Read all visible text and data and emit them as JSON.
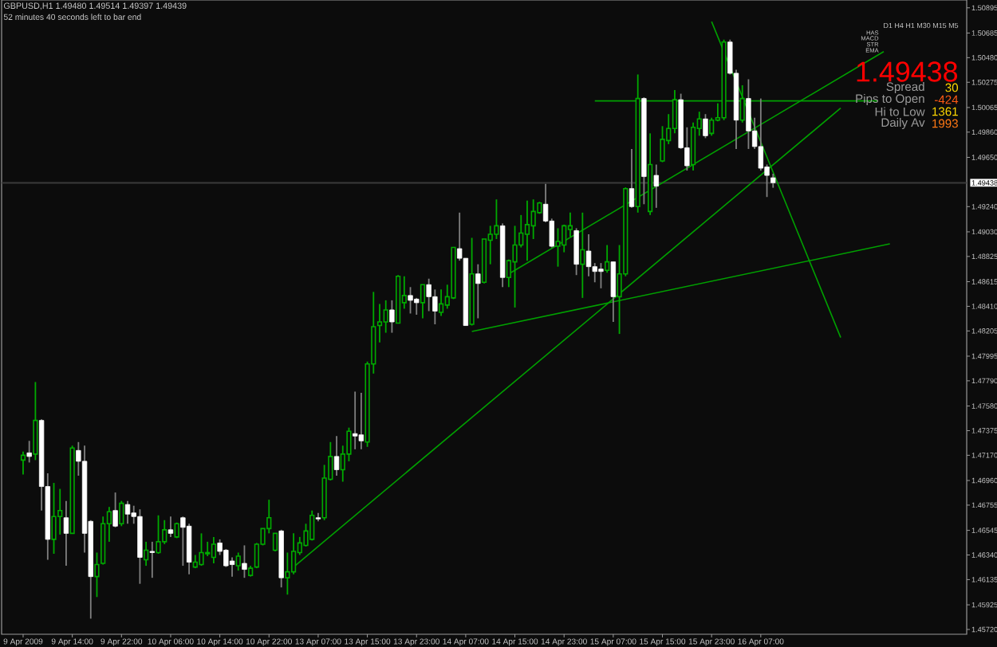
{
  "chart_data": {
    "type": "candlestick",
    "title": "GBPUSD,H1 1.49480 1.49514 1.49397 1.49439",
    "subtitle": "52 minutes 40 seconds left to bar end",
    "annotations": [
      "D1 H4 H1 M30 M15 M5",
      "HAS",
      "MACD",
      "STR",
      "EMA",
      "1.49438",
      "Spread",
      "30",
      "Pips to Open",
      "-424",
      "Hi to Low",
      "1361",
      "Daily Av",
      "1993"
    ],
    "categories": [
      "9 Apr 2009",
      null,
      null,
      null,
      null,
      null,
      null,
      null,
      "9 Apr 14:00",
      null,
      null,
      null,
      null,
      null,
      null,
      null,
      "9 Apr 22:00",
      null,
      null,
      null,
      null,
      null,
      null,
      null,
      "10 Apr 06:00",
      null,
      null,
      null,
      null,
      null,
      null,
      null,
      "10 Apr 14:00",
      null,
      null,
      null,
      null,
      null,
      null,
      null,
      "10 Apr 22:00",
      null,
      null,
      null,
      null,
      null,
      null,
      null,
      "13 Apr 07:00",
      null,
      null,
      null,
      null,
      null,
      null,
      null,
      "13 Apr 15:00",
      null,
      null,
      null,
      null,
      null,
      null,
      null,
      "13 Apr 23:00",
      null,
      null,
      null,
      null,
      null,
      null,
      null,
      "14 Apr 07:00",
      null,
      null,
      null,
      null,
      null,
      null,
      null,
      "14 Apr 15:00",
      null,
      null,
      null,
      null,
      null,
      null,
      null,
      "14 Apr 23:00",
      null,
      null,
      null,
      null,
      null,
      null,
      null,
      "15 Apr 07:00",
      null,
      null,
      null,
      null,
      null,
      null,
      null,
      "15 Apr 15:00",
      null,
      null,
      null,
      null,
      null,
      null,
      null,
      "15 Apr 23:00",
      null,
      null,
      null,
      null,
      null,
      null,
      null,
      "16 Apr 07:00",
      null,
      null,
      null,
      null,
      null,
      null,
      null,
      null,
      null,
      null,
      null,
      null,
      null,
      null,
      null,
      null,
      null,
      null,
      null,
      null,
      null,
      null,
      null,
      null,
      null,
      null,
      null,
      null,
      null,
      null,
      null,
      null,
      null
    ],
    "ohlc": [
      [
        1.4713,
        1.472,
        1.4701,
        1.4717
      ],
      [
        1.4719,
        1.4729,
        1.4711,
        1.4716
      ],
      [
        1.4718,
        1.4778,
        1.4713,
        1.4746
      ],
      [
        1.4746,
        1.4747,
        1.4671,
        1.4691
      ],
      [
        1.4691,
        1.4702,
        1.463,
        1.4647
      ],
      [
        1.4647,
        1.4694,
        1.4635,
        1.4666
      ],
      [
        1.4666,
        1.4689,
        1.4651,
        1.4671
      ],
      [
        1.4665,
        1.4679,
        1.4625,
        1.4652
      ],
      [
        1.4652,
        1.4725,
        1.4652,
        1.4723
      ],
      [
        1.4721,
        1.4728,
        1.47,
        1.4712
      ],
      [
        1.4712,
        1.4725,
        1.4636,
        1.4652
      ],
      [
        1.4662,
        1.4663,
        1.4581,
        1.4616
      ],
      [
        1.4616,
        1.4636,
        1.4599,
        1.4626
      ],
      [
        1.4627,
        1.4666,
        1.4626,
        1.466
      ],
      [
        1.466,
        1.4674,
        1.4645,
        1.467
      ],
      [
        1.4671,
        1.4686,
        1.4657,
        1.4658
      ],
      [
        1.466,
        1.4679,
        1.4658,
        1.4677
      ],
      [
        1.4676,
        1.4679,
        1.466,
        1.4668
      ],
      [
        1.4669,
        1.4675,
        1.466,
        1.4666
      ],
      [
        1.4666,
        1.4672,
        1.461,
        1.4632
      ],
      [
        1.463,
        1.4645,
        1.4625,
        1.4638
      ],
      [
        1.4637,
        1.4645,
        1.4615,
        1.4636
      ],
      [
        1.4636,
        1.4667,
        1.4635,
        1.4645
      ],
      [
        1.4645,
        1.4663,
        1.4643,
        1.4655
      ],
      [
        1.4655,
        1.4666,
        1.4649,
        1.4652
      ],
      [
        1.4649,
        1.4661,
        1.4648,
        1.466
      ],
      [
        1.4665,
        1.4666,
        1.4625,
        1.4657
      ],
      [
        1.4658,
        1.466,
        1.4618,
        1.4628
      ],
      [
        1.4624,
        1.4634,
        1.4623,
        1.4628
      ],
      [
        1.4626,
        1.4652,
        1.4625,
        1.4636
      ],
      [
        1.4635,
        1.4645,
        1.4633,
        1.4636
      ],
      [
        1.4632,
        1.4649,
        1.4627,
        1.4643
      ],
      [
        1.4644,
        1.4647,
        1.4634,
        1.4637
      ],
      [
        1.4638,
        1.4639,
        1.4624,
        1.4625
      ],
      [
        1.4629,
        1.4632,
        1.4616,
        1.4626
      ],
      [
        1.4625,
        1.4636,
        1.4621,
        1.4633
      ],
      [
        1.4627,
        1.4642,
        1.4615,
        1.4622
      ],
      [
        1.4617,
        1.4625,
        1.4616,
        1.4623
      ],
      [
        1.4624,
        1.4644,
        1.4623,
        1.4643
      ],
      [
        1.4643,
        1.4656,
        1.4642,
        1.4656
      ],
      [
        1.4656,
        1.468,
        1.4652,
        1.4665
      ],
      [
        1.4638,
        1.4652,
        1.4637,
        1.4652
      ],
      [
        1.4654,
        1.4655,
        1.4607,
        1.4615
      ],
      [
        1.4615,
        1.4636,
        1.4601,
        1.462
      ],
      [
        1.462,
        1.4652,
        1.4618,
        1.4637
      ],
      [
        1.4636,
        1.4649,
        1.4634,
        1.4644
      ],
      [
        1.4642,
        1.466,
        1.4641,
        1.4654
      ],
      [
        1.4647,
        1.4671,
        1.4646,
        1.4667
      ],
      [
        1.4665,
        1.4669,
        1.4662,
        1.4664
      ],
      [
        1.4665,
        1.4709,
        1.4663,
        1.4698
      ],
      [
        1.4697,
        1.4728,
        1.4696,
        1.4716
      ],
      [
        1.4716,
        1.4733,
        1.47,
        1.4705
      ],
      [
        1.4705,
        1.4725,
        1.4695,
        1.4718
      ],
      [
        1.4718,
        1.474,
        1.4712,
        1.4737
      ],
      [
        1.4735,
        1.477,
        1.4722,
        1.4733
      ],
      [
        1.4734,
        1.4769,
        1.4722,
        1.4729
      ],
      [
        1.4728,
        1.4795,
        1.4724,
        1.4793
      ],
      [
        1.4793,
        1.4853,
        1.4785,
        1.4824
      ],
      [
        1.4825,
        1.4843,
        1.4811,
        1.4828
      ],
      [
        1.4828,
        1.4846,
        1.4819,
        1.4838
      ],
      [
        1.4838,
        1.4846,
        1.4819,
        1.4828
      ],
      [
        1.4827,
        1.4867,
        1.4827,
        1.4866
      ],
      [
        1.4844,
        1.4866,
        1.4839,
        1.485
      ],
      [
        1.485,
        1.4857,
        1.4835,
        1.4846
      ],
      [
        1.4847,
        1.4848,
        1.4834,
        1.4844
      ],
      [
        1.4844,
        1.4859,
        1.4831,
        1.4859
      ],
      [
        1.4859,
        1.4864,
        1.4837,
        1.4849
      ],
      [
        1.4849,
        1.4855,
        1.4826,
        1.4837
      ],
      [
        1.4836,
        1.4855,
        1.4833,
        1.4843
      ],
      [
        1.4842,
        1.4859,
        1.4839,
        1.4849
      ],
      [
        1.4848,
        1.489,
        1.4847,
        1.489
      ],
      [
        1.4889,
        1.4919,
        1.4879,
        1.4881
      ],
      [
        1.4881,
        1.4881,
        1.4825,
        1.4825
      ],
      [
        1.4826,
        1.4898,
        1.4825,
        1.4868
      ],
      [
        1.4868,
        1.4876,
        1.4831,
        1.486
      ],
      [
        1.4861,
        1.4897,
        1.486,
        1.4897
      ],
      [
        1.4896,
        1.4908,
        1.4876,
        1.4901
      ],
      [
        1.4901,
        1.493,
        1.4897,
        1.4908
      ],
      [
        1.4908,
        1.491,
        1.4857,
        1.4865
      ],
      [
        1.4865,
        1.488,
        1.4857,
        1.4879
      ],
      [
        1.4878,
        1.4908,
        1.484,
        1.4892
      ],
      [
        1.4892,
        1.4917,
        1.489,
        1.4902
      ],
      [
        1.4901,
        1.4929,
        1.4879,
        1.4909
      ],
      [
        1.4908,
        1.493,
        1.4897,
        1.492
      ],
      [
        1.4919,
        1.4928,
        1.4918,
        1.4927
      ],
      [
        1.4926,
        1.4943,
        1.4911,
        1.4912
      ],
      [
        1.4912,
        1.4914,
        1.489,
        1.4891
      ],
      [
        1.4891,
        1.4906,
        1.4874,
        1.4895
      ],
      [
        1.4892,
        1.4909,
        1.4886,
        1.4908
      ],
      [
        1.4905,
        1.4919,
        1.4899,
        1.4908
      ],
      [
        1.4904,
        1.4906,
        1.4867,
        1.4876
      ],
      [
        1.4876,
        1.4919,
        1.4848,
        1.4888
      ],
      [
        1.4887,
        1.4901,
        1.4866,
        1.4874
      ],
      [
        1.4874,
        1.4877,
        1.4861,
        1.487
      ],
      [
        1.4872,
        1.4877,
        1.4856,
        1.487
      ],
      [
        1.4871,
        1.4892,
        1.4869,
        1.4878
      ],
      [
        1.4878,
        1.4878,
        1.4828,
        1.4849
      ],
      [
        1.4849,
        1.4892,
        1.4818,
        1.4868
      ],
      [
        1.4868,
        1.494,
        1.4866,
        1.4939
      ],
      [
        1.4939,
        1.4972,
        1.4923,
        1.4924
      ],
      [
        1.4924,
        1.5034,
        1.4919,
        1.5014
      ],
      [
        1.5014,
        1.5015,
        1.4926,
        1.4949
      ],
      [
        1.492,
        1.4985,
        1.4917,
        1.4959
      ],
      [
        1.495,
        1.4959,
        1.4923,
        1.4941
      ],
      [
        1.4962,
        1.4991,
        1.4961,
        1.498
      ],
      [
        1.4979,
        1.5001,
        1.4976,
        1.4989
      ],
      [
        1.4989,
        1.5021,
        1.4985,
        1.5013
      ],
      [
        1.5013,
        1.5018,
        1.4972,
        1.4973
      ],
      [
        1.4973,
        1.499,
        1.4954,
        1.4958
      ],
      [
        1.4959,
        1.4994,
        1.4954,
        1.499
      ],
      [
        1.4989,
        1.5003,
        1.4983,
        1.4997
      ],
      [
        1.4997,
        1.5001,
        1.4981,
        1.4983
      ],
      [
        1.4985,
        1.4998,
        1.4983,
        1.4996
      ],
      [
        1.4996,
        1.501,
        1.4995,
        1.4998
      ],
      [
        1.4998,
        1.5063,
        1.4996,
        1.5061
      ],
      [
        1.5061,
        1.5063,
        1.5034,
        1.5035
      ],
      [
        1.5035,
        1.5038,
        1.4972,
        1.4996
      ],
      [
        1.4996,
        1.5025,
        1.4994,
        1.5014
      ],
      [
        1.5014,
        1.503,
        1.4972,
        1.4987
      ],
      [
        1.4987,
        1.4998,
        1.4972,
        1.4974
      ],
      [
        1.4974,
        1.5014,
        1.4954,
        1.4956
      ],
      [
        1.4957,
        1.4959,
        1.4932,
        1.495
      ],
      [
        1.4948,
        1.49514,
        1.49397,
        1.49439
      ],
      null,
      null,
      null,
      null,
      null,
      null,
      null,
      null,
      null,
      null,
      null,
      null,
      null,
      null,
      null,
      null,
      null,
      null,
      null,
      null,
      null,
      null,
      null,
      null,
      null,
      null,
      null,
      null,
      null,
      null,
      null
    ],
    "colors": [
      "#00aa00",
      "#ffffff",
      "#00aa00",
      "#ffffff",
      "#ffffff",
      "#00aa00",
      "#00aa00",
      "#ffffff",
      "#00aa00",
      "#ffffff",
      "#ffffff",
      "#ffffff",
      "#00aa00",
      "#00aa00",
      "#00aa00",
      "#ffffff",
      "#00aa00",
      "#ffffff",
      "#ffffff",
      "#ffffff",
      "#00aa00",
      "#ffffff",
      "#00aa00",
      "#00aa00",
      "#ffffff",
      "#00aa00",
      "#ffffff",
      "#ffffff",
      "#00aa00",
      "#00aa00",
      "#00aa00",
      "#00aa00",
      "#ffffff",
      "#ffffff",
      "#ffffff",
      "#00aa00",
      "#ffffff",
      "#00aa00",
      "#00aa00",
      "#00aa00",
      "#00aa00",
      "#00aa00",
      "#ffffff",
      "#00aa00",
      "#00aa00",
      "#00aa00",
      "#00aa00",
      "#00aa00",
      "#ffffff",
      "#00aa00",
      "#00aa00",
      "#ffffff",
      "#00aa00",
      "#00aa00",
      "#ffffff",
      "#ffffff",
      "#00aa00",
      "#00aa00",
      "#00aa00",
      "#00aa00",
      "#ffffff",
      "#00aa00",
      "#00aa00",
      "#ffffff",
      "#ffffff",
      "#00aa00",
      "#ffffff",
      "#ffffff",
      "#00aa00",
      "#00aa00",
      "#00aa00",
      "#ffffff",
      "#ffffff",
      "#00aa00",
      "#ffffff",
      "#00aa00",
      "#00aa00",
      "#00aa00",
      "#ffffff",
      "#00aa00",
      "#00aa00",
      "#00aa00",
      "#00aa00",
      "#00aa00",
      "#00aa00",
      "#ffffff",
      "#ffffff",
      "#00aa00",
      "#00aa00",
      "#00aa00",
      "#ffffff",
      "#00aa00",
      "#ffffff",
      "#ffffff",
      "#ffffff",
      "#00aa00",
      "#ffffff",
      "#00aa00",
      "#00aa00",
      "#ffffff",
      "#00aa00",
      "#ffffff",
      "#00aa00",
      "#ffffff",
      "#00aa00",
      "#00aa00",
      "#00aa00",
      "#ffffff",
      "#ffffff",
      "#00aa00",
      "#00aa00",
      "#ffffff",
      "#00aa00",
      "#00aa00",
      "#00aa00",
      "#ffffff",
      "#ffffff",
      "#00aa00",
      "#ffffff",
      "#ffffff",
      "#ffffff",
      "#ffffff",
      "#ffffff",
      null,
      null,
      null,
      null,
      null,
      null,
      null,
      null,
      null,
      null,
      null,
      null,
      null,
      null,
      null,
      null,
      null,
      null,
      null,
      null,
      null,
      null,
      null,
      null,
      null,
      null,
      null,
      null,
      null,
      null,
      null
    ],
    "series": [
      {
        "type": "line",
        "color": "#00a000",
        "values": [
          null,
          null,
          null,
          null,
          null,
          null,
          null,
          null,
          null,
          null,
          null,
          null,
          null,
          null,
          null,
          null,
          null,
          null,
          null,
          null,
          null,
          null,
          null,
          null,
          null,
          null,
          null,
          null,
          null,
          null,
          null,
          null,
          null,
          null,
          null,
          null,
          null,
          null,
          null,
          null,
          null,
          null,
          null,
          null,
          1.4624,
          null,
          null,
          null,
          null,
          null,
          null,
          null,
          null,
          null,
          null,
          null,
          null,
          null,
          null,
          null,
          null,
          null,
          null,
          null,
          null,
          null,
          null,
          null,
          null,
          null,
          null,
          null,
          null,
          null,
          null,
          null,
          null,
          null,
          null,
          null,
          null,
          null,
          null,
          null,
          null,
          null,
          null,
          null,
          null,
          null,
          null,
          null,
          null,
          null,
          null,
          null,
          null,
          null,
          null,
          null,
          null,
          null,
          null,
          null,
          null,
          null,
          null,
          null,
          null,
          null,
          null,
          null,
          null,
          null,
          null,
          null,
          null,
          null,
          null,
          null,
          null,
          null,
          null,
          null,
          null,
          null,
          null,
          null,
          null,
          null,
          null,
          null,
          null,
          1.5006,
          null,
          null,
          null,
          null,
          null,
          null,
          null,
          null,
          null,
          null,
          null,
          null,
          null,
          null,
          null,
          null,
          null,
          null,
          null,
          null
        ]
      },
      {
        "type": "line",
        "color": "#00a000",
        "values": [
          null,
          null,
          null,
          null,
          null,
          null,
          null,
          null,
          null,
          null,
          null,
          null,
          null,
          null,
          null,
          null,
          null,
          null,
          null,
          null,
          null,
          null,
          null,
          null,
          null,
          null,
          null,
          null,
          null,
          null,
          null,
          null,
          null,
          null,
          null,
          null,
          null,
          null,
          null,
          null,
          null,
          null,
          null,
          null,
          null,
          null,
          null,
          null,
          null,
          null,
          null,
          null,
          null,
          null,
          null,
          null,
          null,
          null,
          null,
          null,
          null,
          null,
          null,
          null,
          null,
          null,
          null,
          null,
          null,
          null,
          null,
          null,
          null,
          null,
          null,
          null,
          null,
          null,
          null,
          1.4868,
          null,
          null,
          null,
          null,
          null,
          null,
          null,
          null,
          null,
          null,
          null,
          null,
          null,
          null,
          null,
          null,
          null,
          null,
          null,
          null,
          null,
          null,
          null,
          null,
          null,
          null,
          null,
          null,
          null,
          null,
          null,
          null,
          null,
          null,
          null,
          null,
          null,
          null,
          null,
          null,
          null,
          null,
          null,
          null,
          null,
          null,
          null,
          null,
          null,
          null,
          null,
          null,
          null,
          null,
          null,
          null,
          null,
          null,
          null,
          null,
          1.5053,
          null,
          null,
          null,
          null,
          null,
          null,
          null,
          null,
          null,
          null,
          null,
          null,
          null
        ]
      },
      {
        "type": "line",
        "color": "#00a000",
        "values": [
          null,
          null,
          null,
          null,
          null,
          null,
          null,
          null,
          null,
          null,
          null,
          null,
          null,
          null,
          null,
          null,
          null,
          null,
          null,
          null,
          null,
          null,
          null,
          null,
          null,
          null,
          null,
          null,
          null,
          null,
          null,
          null,
          null,
          null,
          null,
          null,
          null,
          null,
          null,
          null,
          null,
          null,
          null,
          null,
          null,
          null,
          null,
          null,
          null,
          null,
          null,
          null,
          null,
          null,
          null,
          null,
          null,
          null,
          null,
          null,
          null,
          null,
          null,
          null,
          null,
          null,
          null,
          null,
          null,
          null,
          null,
          null,
          null,
          1.482,
          null,
          null,
          null,
          null,
          null,
          null,
          null,
          null,
          null,
          null,
          null,
          null,
          null,
          null,
          null,
          null,
          null,
          null,
          null,
          null,
          null,
          null,
          null,
          null,
          null,
          null,
          null,
          null,
          null,
          null,
          null,
          null,
          null,
          null,
          null,
          null,
          null,
          null,
          null,
          null,
          null,
          null,
          null,
          null,
          null,
          null,
          null,
          null,
          null,
          null,
          null,
          null,
          null,
          null,
          null,
          null,
          null,
          null,
          null,
          null,
          null,
          null,
          null,
          null,
          null,
          null,
          null,
          1.4893,
          null,
          null,
          null,
          null,
          null,
          null,
          null,
          null,
          null,
          null,
          null,
          null
        ]
      },
      {
        "type": "line",
        "color": "#00a000",
        "values": [
          null,
          null,
          null,
          null,
          null,
          null,
          null,
          null,
          null,
          null,
          null,
          null,
          null,
          null,
          null,
          null,
          null,
          null,
          null,
          null,
          null,
          null,
          null,
          null,
          null,
          null,
          null,
          null,
          null,
          null,
          null,
          null,
          null,
          null,
          null,
          null,
          null,
          null,
          null,
          null,
          null,
          null,
          null,
          null,
          null,
          null,
          null,
          null,
          null,
          null,
          null,
          null,
          null,
          null,
          null,
          null,
          null,
          null,
          null,
          null,
          null,
          null,
          null,
          null,
          null,
          null,
          null,
          null,
          null,
          null,
          null,
          null,
          null,
          null,
          null,
          null,
          null,
          null,
          null,
          null,
          null,
          null,
          null,
          null,
          null,
          null,
          null,
          null,
          null,
          null,
          null,
          null,
          null,
          null,
          null,
          null,
          null,
          null,
          null,
          null,
          null,
          null,
          null,
          null,
          null,
          null,
          null,
          null,
          null,
          null,
          null,
          null,
          1.5078,
          null,
          null,
          null,
          null,
          null,
          null,
          null,
          null,
          null,
          null,
          null,
          null,
          null,
          null,
          null,
          null,
          null,
          null,
          null,
          null,
          1.4815,
          null,
          null,
          null,
          null,
          null,
          null,
          null,
          null,
          null,
          null,
          null,
          null,
          null,
          null,
          null,
          null,
          null,
          null,
          null,
          null
        ]
      },
      {
        "type": "line",
        "color": "#00a000",
        "values": [
          null,
          null,
          null,
          null,
          null,
          null,
          null,
          null,
          null,
          null,
          null,
          null,
          null,
          null,
          null,
          null,
          null,
          null,
          null,
          null,
          null,
          null,
          null,
          null,
          null,
          null,
          null,
          null,
          null,
          null,
          null,
          null,
          null,
          null,
          null,
          null,
          null,
          null,
          null,
          null,
          null,
          null,
          null,
          null,
          null,
          null,
          null,
          null,
          null,
          null,
          null,
          null,
          null,
          null,
          null,
          null,
          null,
          null,
          null,
          null,
          null,
          null,
          null,
          null,
          null,
          null,
          null,
          null,
          null,
          null,
          null,
          null,
          null,
          null,
          null,
          null,
          null,
          null,
          null,
          null,
          null,
          null,
          null,
          null,
          null,
          null,
          null,
          null,
          null,
          null,
          null,
          null,
          null,
          1.5012,
          null,
          null,
          null,
          null,
          null,
          null,
          null,
          null,
          null,
          null,
          null,
          null,
          null,
          null,
          null,
          null,
          null,
          null,
          null,
          null,
          null,
          null,
          null,
          null,
          null,
          null,
          null,
          null,
          null,
          null,
          null,
          null,
          null,
          null,
          null,
          null,
          null,
          null,
          null,
          null,
          null,
          null,
          null,
          null,
          null,
          1.5012,
          null,
          null,
          null,
          null,
          null,
          null,
          null,
          null,
          null,
          null,
          null,
          null,
          null,
          null
        ]
      }
    ],
    "ref_lines": [
      {
        "axis": "y",
        "value": 1.49438,
        "label": "1.49438",
        "color": "#3a3a3a"
      }
    ],
    "ylim": [
      1.4568,
      1.5096
    ],
    "yticks": [
      {
        "value": 1.50895,
        "label": "1.50895"
      },
      {
        "value": 1.50685,
        "label": "1.50685"
      },
      {
        "value": 1.5048,
        "label": "1.50480"
      },
      {
        "value": 1.50275,
        "label": "1.50275"
      },
      {
        "value": 1.50065,
        "label": "1.50065"
      },
      {
        "value": 1.4986,
        "label": "1.49860"
      },
      {
        "value": 1.4965,
        "label": "1.49650"
      },
      {
        "value": 1.4924,
        "label": "1.49240"
      },
      {
        "value": 1.4903,
        "label": "1.49030"
      },
      {
        "value": 1.48825,
        "label": "1.48825"
      },
      {
        "value": 1.48615,
        "label": "1.48615"
      },
      {
        "value": 1.4841,
        "label": "1.48410"
      },
      {
        "value": 1.48205,
        "label": "1.48205"
      },
      {
        "value": 1.47995,
        "label": "1.47995"
      },
      {
        "value": 1.4779,
        "label": "1.47790"
      },
      {
        "value": 1.4758,
        "label": "1.47580"
      },
      {
        "value": 1.47375,
        "label": "1.47375"
      },
      {
        "value": 1.4717,
        "label": "1.47170"
      },
      {
        "value": 1.4696,
        "label": "1.46960"
      },
      {
        "value": 1.46755,
        "label": "1.46755"
      },
      {
        "value": 1.46545,
        "label": "1.46545"
      },
      {
        "value": 1.4634,
        "label": "1.46340"
      },
      {
        "value": 1.46135,
        "label": "1.46135"
      },
      {
        "value": 1.45925,
        "label": "1.45925"
      },
      {
        "value": 1.4572,
        "label": "1.45720"
      }
    ]
  }
}
